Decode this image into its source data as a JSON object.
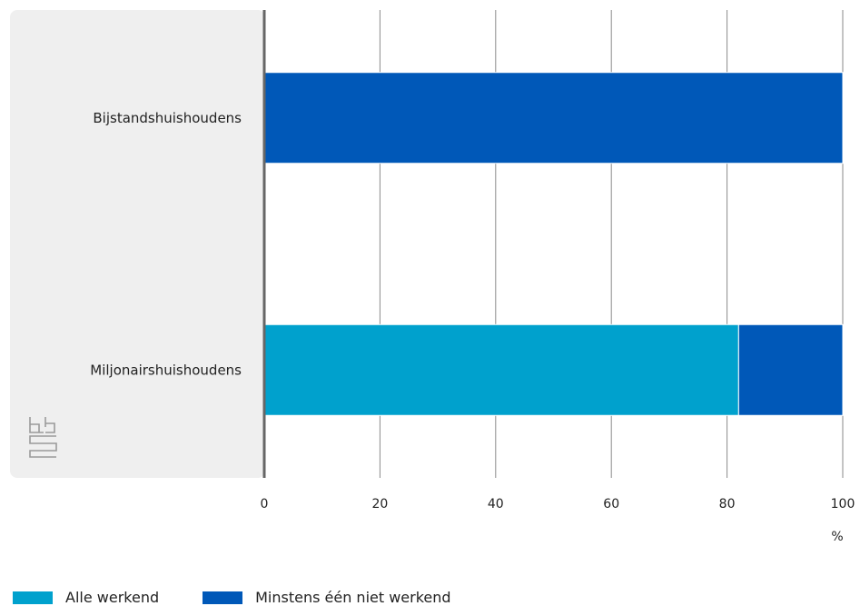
{
  "chart_data": {
    "type": "bar",
    "orientation": "horizontal",
    "stacked": true,
    "categories": [
      "Bijstandshuishoudens",
      "Miljonairshuishoudens"
    ],
    "series": [
      {
        "name": "Alle werkend",
        "values": [
          0,
          82
        ],
        "color": "#00a1cd"
      },
      {
        "name": "Minstens één niet werkend",
        "values": [
          100,
          18
        ],
        "color": "#0058b8"
      }
    ],
    "xlim": [
      0,
      100
    ],
    "xticks": [
      "0",
      "20",
      "40",
      "60",
      "80",
      "100"
    ],
    "xunit": "%",
    "grid": true,
    "legend_position": "bottom-left"
  },
  "logo": {
    "name": "cbs-logo-icon"
  }
}
